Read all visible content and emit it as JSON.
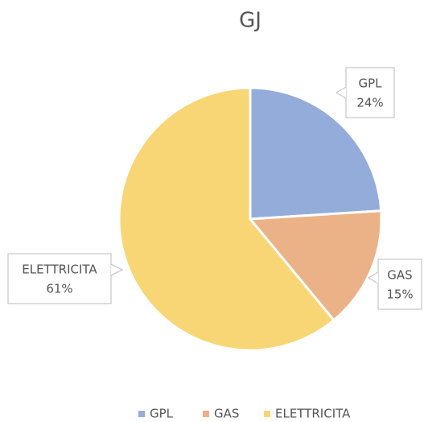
{
  "chart_data": {
    "type": "pie",
    "title": "GJ",
    "categories": [
      "GPL",
      "GAS",
      "ELETTRICITA"
    ],
    "values": [
      24,
      15,
      61
    ],
    "value_labels": [
      "24%",
      "15%",
      "61%"
    ],
    "colors": [
      "#94acd9",
      "#ecb287",
      "#f8d675"
    ],
    "legend": "bottom"
  }
}
